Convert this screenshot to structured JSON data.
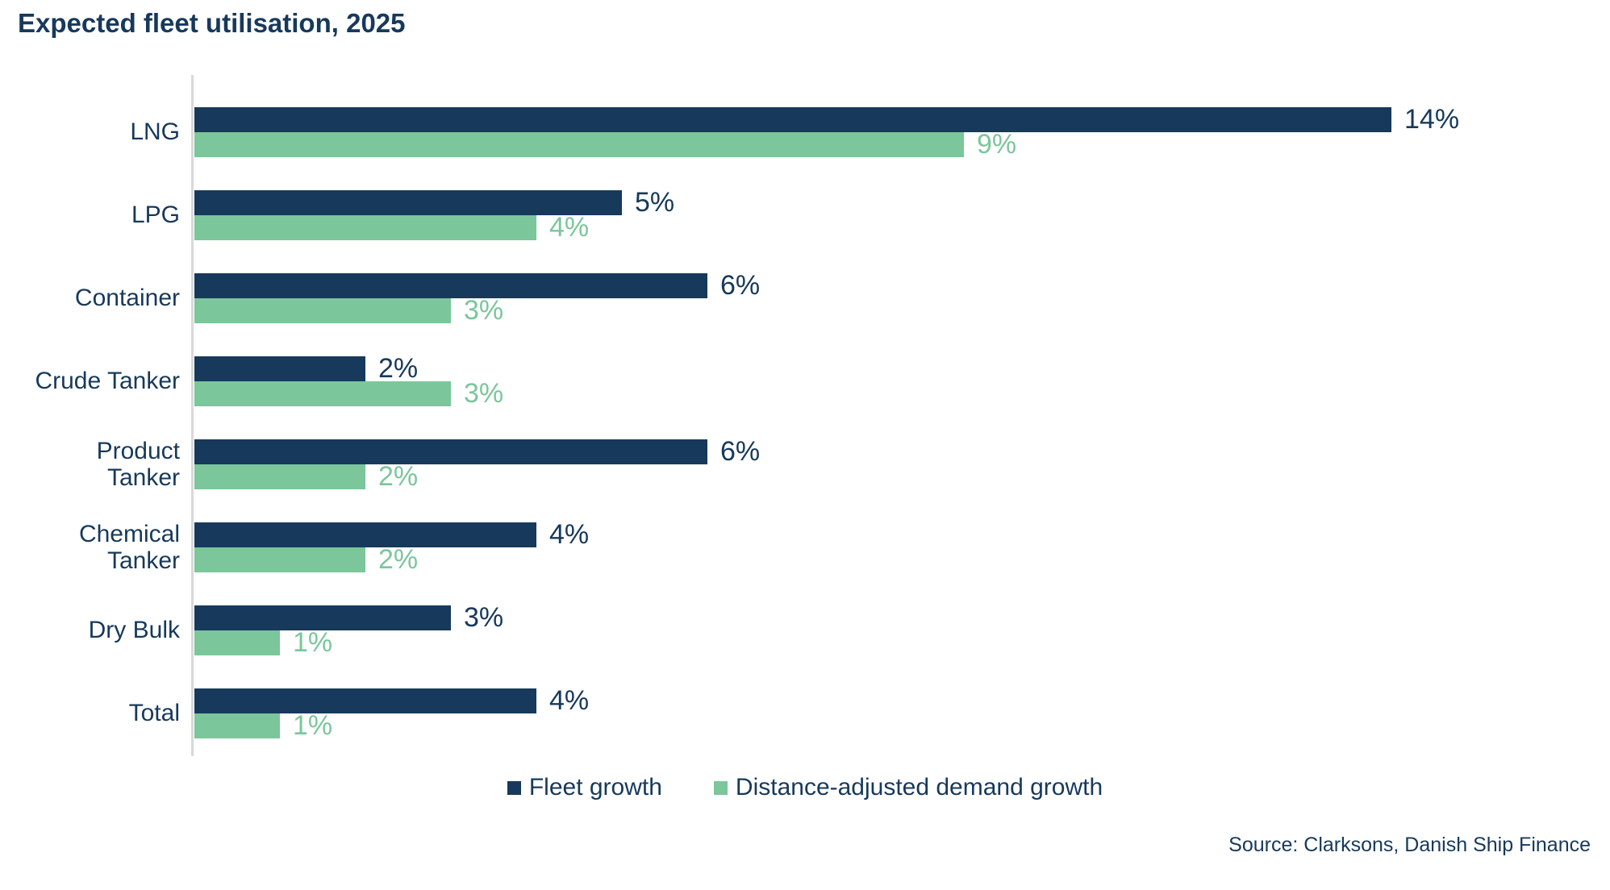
{
  "title": "Expected fleet utilisation, 2025",
  "source": "Source: Clarksons, Danish Ship Finance",
  "colors": {
    "navy": "#17395B",
    "green": "#7BC69B",
    "axis_gray": "#D9D9D9",
    "background": "#FFFFFF"
  },
  "legend": {
    "items": [
      {
        "label": "Fleet growth",
        "color": "#17395B"
      },
      {
        "label": "Distance-adjusted demand growth",
        "color": "#7BC69B"
      }
    ]
  },
  "chart_data": {
    "type": "bar",
    "orientation": "horizontal",
    "title": "Expected fleet utilisation, 2025",
    "categories": [
      "LNG",
      "LPG",
      "Container",
      "Crude Tanker",
      "Product Tanker",
      "Chemical Tanker",
      "Dry Bulk",
      "Total"
    ],
    "category_display_lines": [
      [
        "LNG"
      ],
      [
        "LPG"
      ],
      [
        "Container"
      ],
      [
        "Crude Tanker"
      ],
      [
        "Product",
        "Tanker"
      ],
      [
        "Chemical",
        "Tanker"
      ],
      [
        "Dry Bulk"
      ],
      [
        "Total"
      ]
    ],
    "series": [
      {
        "name": "Fleet growth",
        "color": "#17395B",
        "values": [
          14,
          5,
          6,
          2,
          6,
          4,
          3,
          4
        ],
        "labels": [
          "14%",
          "5%",
          "6%",
          "2%",
          "6%",
          "4%",
          "3%",
          "4%"
        ]
      },
      {
        "name": "Distance-adjusted demand growth",
        "color": "#7BC69B",
        "values": [
          9,
          4,
          3,
          3,
          2,
          2,
          1,
          1
        ],
        "labels": [
          "9%",
          "4%",
          "3%",
          "3%",
          "2%",
          "2%",
          "1%",
          "1%"
        ]
      }
    ],
    "value_suffix": "%",
    "xlim": [
      0,
      16
    ],
    "grid": false,
    "value_labels": "end-of-bar",
    "legend_position": "bottom-center",
    "source_note": "Source: Clarksons, Danish Ship Finance"
  }
}
